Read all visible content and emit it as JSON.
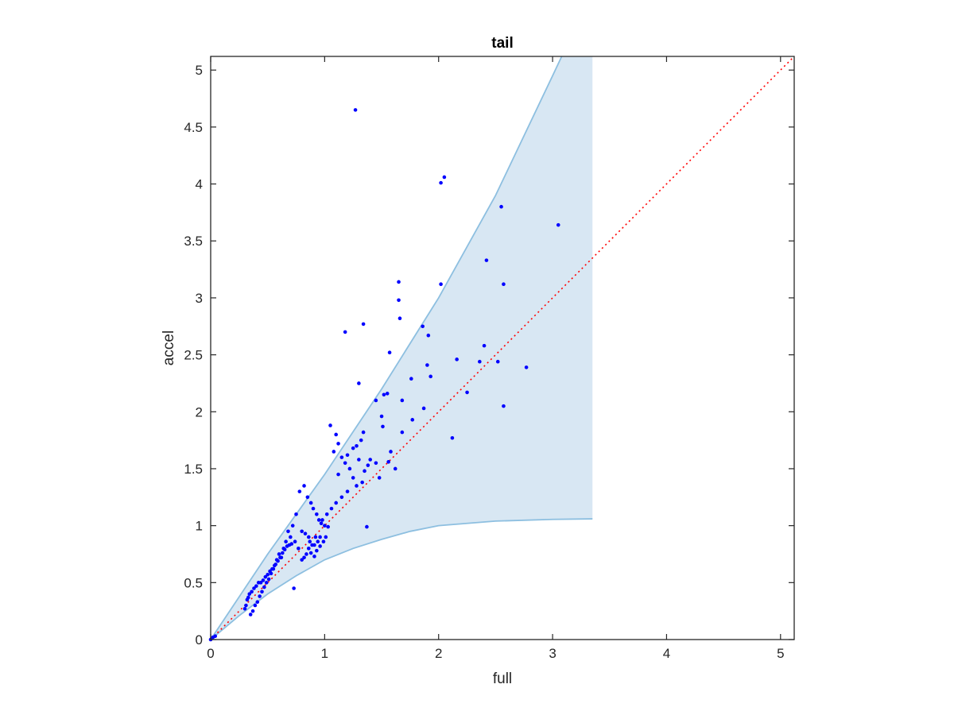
{
  "chart_data": {
    "type": "scatter",
    "title": "tail",
    "xlabel": "full",
    "ylabel": "accel",
    "xlim": [
      0,
      5.12
    ],
    "ylim": [
      0,
      5.12
    ],
    "xticks": [
      "0",
      "1",
      "2",
      "3",
      "4",
      "5"
    ],
    "yticks": [
      "0",
      "0.5",
      "1",
      "1.5",
      "2",
      "2.5",
      "3",
      "3.5",
      "4",
      "4.5",
      "5"
    ],
    "grid": false,
    "legend": "none",
    "colors": {
      "points": "#0000ff",
      "band_fill": "#d8e7f3",
      "band_edge": "#8dbfe0",
      "reference_line": "#ff0000",
      "axes": "#262626"
    },
    "reference_line": {
      "style": "dotted",
      "x": [
        0,
        5.12
      ],
      "y": [
        0,
        5.12
      ]
    },
    "band": {
      "upper": {
        "x": [
          0,
          0.5,
          1.0,
          1.5,
          2.0,
          2.5,
          3.0,
          3.08
        ],
        "y": [
          0,
          0.75,
          1.45,
          2.2,
          3.0,
          3.9,
          4.95,
          5.12
        ]
      },
      "lower": {
        "x": [
          0,
          0.25,
          0.5,
          0.75,
          1.0,
          1.25,
          1.5,
          1.75,
          2.0,
          2.5,
          3.0,
          3.35
        ],
        "y": [
          0,
          0.21,
          0.4,
          0.56,
          0.7,
          0.8,
          0.88,
          0.95,
          1.0,
          1.04,
          1.055,
          1.06
        ]
      },
      "right_edge_x": 3.35
    },
    "series": [
      {
        "x": [
          0,
          0.02,
          0.04,
          1.27,
          2.05,
          2.02,
          2.55,
          3.05,
          2.42,
          2.57,
          2.02,
          1.65,
          1.65,
          1.66,
          1.34,
          1.18,
          1.86,
          1.91,
          2.52,
          2.4,
          1.57,
          2.16,
          2.36,
          2.77,
          1.9,
          1.93,
          1.76,
          1.68,
          1.55,
          1.52,
          2.25,
          2.57,
          1.87,
          1.77,
          1.68,
          1.62,
          2.12,
          1.34,
          1.3,
          1.45,
          1.5,
          1.51,
          1.58,
          1.56,
          1.37,
          1.05,
          1.1,
          1.12,
          1.08,
          1.15,
          1.18,
          1.2,
          1.25,
          1.28,
          1.3,
          1.32,
          1.22,
          1.12,
          1.35,
          1.38,
          1.25,
          1.4,
          1.28,
          1.2,
          1.15,
          1.33,
          1.45,
          1.48,
          1.1,
          1.06,
          1.02,
          0.98,
          0.78,
          0.82,
          0.85,
          0.88,
          0.9,
          0.93,
          0.95,
          0.97,
          1.0,
          1.03,
          0.8,
          0.83,
          0.86,
          0.92,
          0.96,
          0.99,
          1.01,
          0.94,
          0.87,
          0.91,
          0.75,
          0.72,
          0.68,
          0.7,
          0.74,
          0.77,
          0.66,
          0.64,
          0.6,
          0.62,
          0.58,
          0.56,
          0.54,
          0.52,
          0.5,
          0.48,
          0.46,
          0.44,
          0.42,
          0.4,
          0.38,
          0.36,
          0.34,
          0.33,
          0.32,
          0.31,
          0.3,
          0.35,
          0.37,
          0.39,
          0.41,
          0.43,
          0.45,
          0.47,
          0.49,
          0.51,
          0.53,
          0.55,
          0.57,
          0.59,
          0.61,
          0.63,
          0.65,
          0.67,
          0.69,
          0.71,
          0.73,
          0.8,
          0.84,
          0.86,
          0.89,
          0.93,
          0.96,
          0.82,
          0.88,
          0.91
        ],
        "y": [
          0,
          0.02,
          0.03,
          4.65,
          4.06,
          4.01,
          3.8,
          3.64,
          3.33,
          3.12,
          3.12,
          3.14,
          2.98,
          2.82,
          2.77,
          2.7,
          2.75,
          2.67,
          2.44,
          2.58,
          2.52,
          2.46,
          2.44,
          2.39,
          2.41,
          2.31,
          2.29,
          2.1,
          2.16,
          2.15,
          2.17,
          2.05,
          2.03,
          1.93,
          1.82,
          1.5,
          1.77,
          1.82,
          2.25,
          2.1,
          1.96,
          1.87,
          1.65,
          1.56,
          0.99,
          1.88,
          1.8,
          1.72,
          1.65,
          1.6,
          1.55,
          1.62,
          1.68,
          1.7,
          1.58,
          1.75,
          1.5,
          1.45,
          1.48,
          1.53,
          1.42,
          1.58,
          1.35,
          1.3,
          1.25,
          1.38,
          1.55,
          1.42,
          1.2,
          1.15,
          1.1,
          1.05,
          1.3,
          1.35,
          1.25,
          1.2,
          1.15,
          1.1,
          1.05,
          1.02,
          1.0,
          0.99,
          0.95,
          0.93,
          0.9,
          0.9,
          0.9,
          0.86,
          0.9,
          0.86,
          0.86,
          0.83,
          1.1,
          1.0,
          0.95,
          0.9,
          0.86,
          0.8,
          0.86,
          0.8,
          0.75,
          0.72,
          0.7,
          0.65,
          0.62,
          0.6,
          0.57,
          0.55,
          0.52,
          0.5,
          0.5,
          0.47,
          0.45,
          0.42,
          0.4,
          0.37,
          0.35,
          0.3,
          0.27,
          0.22,
          0.25,
          0.3,
          0.33,
          0.38,
          0.42,
          0.46,
          0.5,
          0.53,
          0.58,
          0.62,
          0.66,
          0.69,
          0.72,
          0.76,
          0.79,
          0.82,
          0.83,
          0.84,
          0.45,
          0.7,
          0.75,
          0.8,
          0.83,
          0.78,
          0.82,
          0.72,
          0.76,
          0.73
        ]
      }
    ]
  }
}
